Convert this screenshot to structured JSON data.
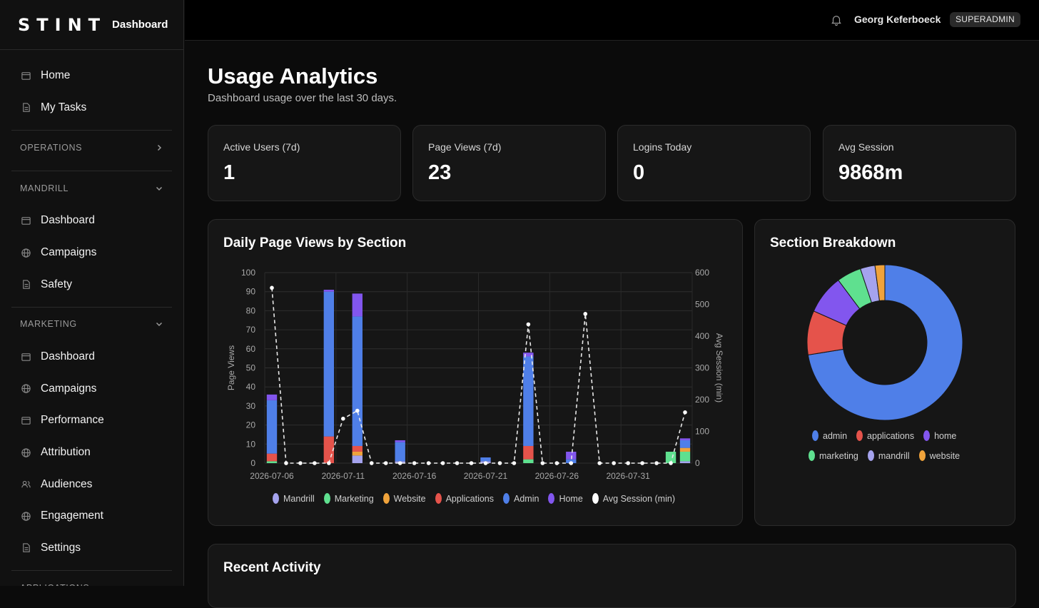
{
  "brand": {
    "logo": "STINT",
    "subtitle": "Dashboard"
  },
  "topbar": {
    "user_name": "Georg Keferboeck",
    "role_badge": "SUPERADMIN"
  },
  "sidebar": {
    "top_items": [
      {
        "label": "Home",
        "icon": "window-icon"
      },
      {
        "label": "My Tasks",
        "icon": "document-icon"
      }
    ],
    "sections": [
      {
        "label": "OPERATIONS",
        "expanded": false,
        "items": []
      },
      {
        "label": "MANDRILL",
        "expanded": true,
        "items": [
          {
            "label": "Dashboard",
            "icon": "window-icon"
          },
          {
            "label": "Campaigns",
            "icon": "globe-icon"
          },
          {
            "label": "Safety",
            "icon": "document-icon"
          }
        ]
      },
      {
        "label": "MARKETING",
        "expanded": true,
        "items": [
          {
            "label": "Dashboard",
            "icon": "window-icon"
          },
          {
            "label": "Campaigns",
            "icon": "globe-icon"
          },
          {
            "label": "Performance",
            "icon": "window-icon"
          },
          {
            "label": "Attribution",
            "icon": "globe-icon"
          },
          {
            "label": "Audiences",
            "icon": "users-icon"
          },
          {
            "label": "Engagement",
            "icon": "globe-icon"
          },
          {
            "label": "Settings",
            "icon": "document-icon"
          }
        ]
      },
      {
        "label": "APPLICATIONS",
        "expanded": true,
        "items": []
      }
    ]
  },
  "page": {
    "title": "Usage Analytics",
    "subtitle": "Dashboard usage over the last 30 days."
  },
  "stats": [
    {
      "label": "Active Users (7d)",
      "value": "1"
    },
    {
      "label": "Page Views (7d)",
      "value": "23"
    },
    {
      "label": "Logins Today",
      "value": "0"
    },
    {
      "label": "Avg Session",
      "value": "9868m"
    }
  ],
  "daily_chart_title": "Daily Page Views by Section",
  "breakdown_title": "Section Breakdown",
  "recent_activity_title": "Recent Activity",
  "colors": {
    "Mandrill": "#a5a3ee",
    "Marketing": "#5fe08f",
    "Website": "#f0a33b",
    "Applications": "#e5534b",
    "Admin": "#4f7fe8",
    "Home": "#8256ee",
    "Avg Session (min)": "#ffffff"
  },
  "chart_data": [
    {
      "type": "bar",
      "title": "Daily Page Views by Section",
      "ylabel": "Page Views",
      "y2label": "Avg Session (min)",
      "ylim": [
        0,
        100
      ],
      "y2lim": [
        0,
        600
      ],
      "yticks": [
        0,
        10,
        20,
        30,
        40,
        50,
        60,
        70,
        80,
        90,
        100
      ],
      "y2ticks": [
        0,
        100,
        200,
        300,
        400,
        500,
        600
      ],
      "stacked": true,
      "grid": true,
      "legend_position": "bottom",
      "x": [
        "2026-07-06",
        "2026-07-07",
        "2026-07-08",
        "2026-07-09",
        "2026-07-10",
        "2026-07-11",
        "2026-07-12",
        "2026-07-13",
        "2026-07-14",
        "2026-07-15",
        "2026-07-16",
        "2026-07-17",
        "2026-07-18",
        "2026-07-19",
        "2026-07-20",
        "2026-07-21",
        "2026-07-22",
        "2026-07-23",
        "2026-07-24",
        "2026-07-25",
        "2026-07-26",
        "2026-07-27",
        "2026-07-28",
        "2026-07-29",
        "2026-07-30",
        "2026-07-31",
        "2026-08-01",
        "2026-08-02",
        "2026-08-03",
        "2026-08-04"
      ],
      "xtick_labels": [
        "2026-07-06",
        "2026-07-11",
        "2026-07-16",
        "2026-07-21",
        "2026-07-26",
        "2026-07-31"
      ],
      "series": [
        {
          "name": "Mandrill",
          "values": [
            0,
            0,
            0,
            0,
            0,
            0,
            4,
            0,
            0,
            1,
            0,
            0,
            0,
            0,
            0,
            1,
            0,
            0,
            0,
            0,
            0,
            0,
            0,
            0,
            0,
            0,
            0,
            0,
            0,
            1
          ]
        },
        {
          "name": "Marketing",
          "values": [
            1,
            0,
            0,
            0,
            0,
            0,
            0,
            0,
            0,
            0,
            0,
            0,
            0,
            0,
            0,
            0,
            0,
            0,
            2,
            0,
            0,
            0,
            0,
            0,
            0,
            0,
            0,
            0,
            6,
            5
          ]
        },
        {
          "name": "Website",
          "values": [
            0,
            0,
            0,
            0,
            0,
            0,
            2,
            0,
            0,
            0,
            0,
            0,
            0,
            0,
            0,
            0,
            0,
            0,
            0,
            0,
            0,
            0,
            0,
            0,
            0,
            0,
            0,
            0,
            0,
            2
          ]
        },
        {
          "name": "Applications",
          "values": [
            4,
            0,
            0,
            0,
            14,
            0,
            3,
            0,
            0,
            0,
            0,
            0,
            0,
            0,
            0,
            0,
            0,
            0,
            7,
            0,
            0,
            0,
            0,
            0,
            0,
            0,
            0,
            0,
            0,
            0
          ]
        },
        {
          "name": "Admin",
          "values": [
            28,
            0,
            0,
            0,
            76,
            0,
            68,
            0,
            0,
            10,
            0,
            0,
            0,
            0,
            0,
            2,
            0,
            0,
            47,
            0,
            0,
            2,
            0,
            0,
            0,
            0,
            0,
            0,
            0,
            4
          ]
        },
        {
          "name": "Home",
          "values": [
            3,
            0,
            0,
            0,
            1,
            0,
            12,
            0,
            0,
            1,
            0,
            0,
            0,
            0,
            0,
            0,
            0,
            0,
            2,
            0,
            0,
            4,
            0,
            0,
            0,
            0,
            0,
            0,
            0,
            1
          ]
        }
      ],
      "line_series": {
        "name": "Avg Session (min)",
        "axis": "right",
        "values": [
          552,
          0,
          0,
          0,
          0,
          140,
          165,
          0,
          0,
          0,
          0,
          0,
          0,
          0,
          0,
          0,
          0,
          0,
          437,
          0,
          0,
          0,
          470,
          0,
          0,
          0,
          0,
          0,
          0,
          160
        ]
      }
    },
    {
      "type": "pie",
      "title": "Section Breakdown",
      "donut": true,
      "legend_position": "bottom",
      "labels": [
        "admin",
        "applications",
        "home",
        "marketing",
        "mandrill",
        "website"
      ],
      "values": [
        71,
        9,
        8,
        5,
        3,
        2
      ]
    }
  ]
}
